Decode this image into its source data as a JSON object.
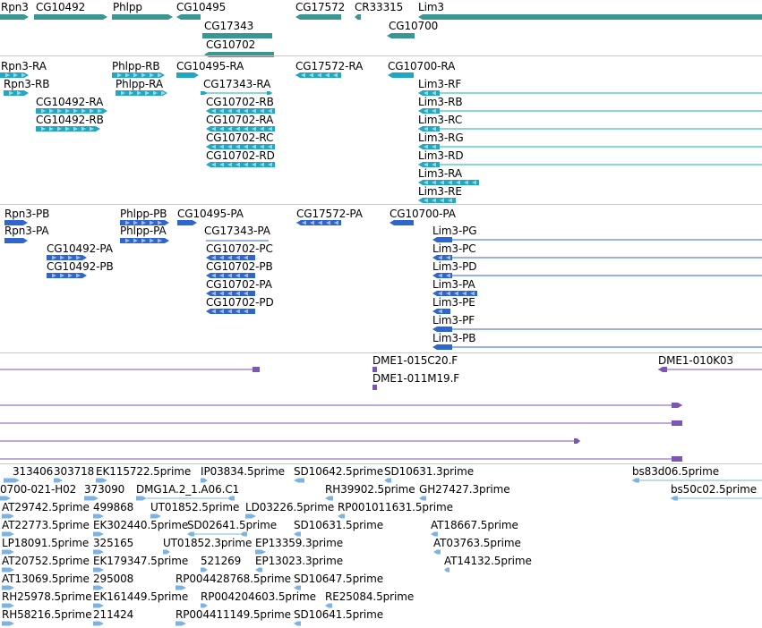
{
  "colors": {
    "gene": "#3a9692",
    "transcript": "#21a7c2",
    "protein": "#2f66cc",
    "clone": "#7b56b3",
    "est": "#7fb3df",
    "separator": "#c8c8c8"
  },
  "tracks": {
    "genes": {
      "labels": [
        "Rpn3",
        "CG10492",
        "Phlpp",
        "CG10495",
        "CG17572",
        "CR33315",
        "Lim3",
        "CG17343",
        "CG10702",
        "CG10700"
      ]
    },
    "transcripts": {
      "labels": [
        "Rpn3-RA",
        "Rpn3-RB",
        "Phlpp-RB",
        "Phlpp-RA",
        "CG10495-RA",
        "CG17343-RA",
        "CG17572-RA",
        "CG10700-RA",
        "CG10492-RA",
        "CG10492-RB",
        "CG10702-RB",
        "CG10702-RA",
        "CG10702-RC",
        "CG10702-RD",
        "Lim3-RF",
        "Lim3-RB",
        "Lim3-RC",
        "Lim3-RG",
        "Lim3-RD",
        "Lim3-RA",
        "Lim3-RE"
      ]
    },
    "proteins": {
      "labels": [
        "Rpn3-PB",
        "Rpn3-PA",
        "Phlpp-PB",
        "Phlpp-PA",
        "CG10495-PA",
        "CG17343-PA",
        "CG17572-PA",
        "CG10700-PA",
        "CG10492-PA",
        "CG10492-PB",
        "CG10702-PC",
        "CG10702-PB",
        "CG10702-PA",
        "CG10702-PD",
        "Lim3-PG",
        "Lim3-PC",
        "Lim3-PD",
        "Lim3-PA",
        "Lim3-PE",
        "Lim3-PF",
        "Lim3-PB"
      ]
    },
    "clones": {
      "labels": [
        "DME1-015C20.F",
        "DME1-011M19.F",
        "DME1-010K03"
      ]
    },
    "ests": {
      "labels": [
        "313406",
        "303718",
        "EK115722.5prime",
        "IP03834.5prime",
        "SD10642.5prime",
        "SD10631.3prime",
        "bs83d06.5prime",
        "0700-021-H02",
        "373090",
        "DMG1A.2_1.A06.C1",
        "RH39902.5prime",
        "GH27427.3prime",
        "bs50c02.5prime",
        "AT29742.5prime",
        "499868",
        "UT01852.5prime",
        "LD03226.5prime",
        "RP001011631.5prime",
        "AT22773.5prime",
        "EK302440.5prime",
        "SD02641.5prime",
        "SD10631.5prime",
        "AT18667.5prime",
        "LP18091.5prime",
        "325165",
        "UT01852.3prime",
        "EP13359.3prime",
        "AT03763.5prime",
        "AT20752.5prime",
        "EK179347.5prime",
        "521269",
        "EP13023.3prime",
        "AT14132.5prime",
        "AT13069.5prime",
        "295008",
        "RP004428768.5prime",
        "SD10647.5prime",
        "RH25978.5prime",
        "EK161449.5prime",
        "RP004204603.5prime",
        "RE25084.5prime",
        "RH58216.5prime",
        "211424",
        "RP004411149.5prime",
        "SD10641.5prime"
      ]
    }
  }
}
